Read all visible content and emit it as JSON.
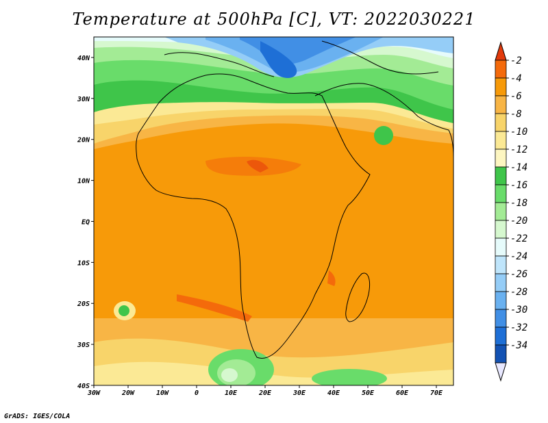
{
  "title": "Temperature at 500hPa [C], VT: 2022030221",
  "credit": "GrADS: IGES/COLA",
  "map": {
    "lon_range": [
      -30,
      75
    ],
    "lat_range": [
      -40,
      45
    ],
    "lon_ticks": [
      {
        "value": -30,
        "label": "30W"
      },
      {
        "value": -20,
        "label": "20W"
      },
      {
        "value": -10,
        "label": "10W"
      },
      {
        "value": 0,
        "label": "0"
      },
      {
        "value": 10,
        "label": "10E"
      },
      {
        "value": 20,
        "label": "20E"
      },
      {
        "value": 30,
        "label": "30E"
      },
      {
        "value": 40,
        "label": "40E"
      },
      {
        "value": 50,
        "label": "50E"
      },
      {
        "value": 60,
        "label": "60E"
      },
      {
        "value": 70,
        "label": "70E"
      }
    ],
    "lat_ticks": [
      {
        "value": 40,
        "label": "40N"
      },
      {
        "value": 30,
        "label": "30N"
      },
      {
        "value": 20,
        "label": "20N"
      },
      {
        "value": 10,
        "label": "10N"
      },
      {
        "value": 0,
        "label": "EQ"
      },
      {
        "value": -10,
        "label": "10S"
      },
      {
        "value": -20,
        "label": "20S"
      },
      {
        "value": -30,
        "label": "30S"
      },
      {
        "value": -40,
        "label": "40S"
      }
    ]
  },
  "colorbar": {
    "labels": [
      "-2",
      "-4",
      "-6",
      "-8",
      "-10",
      "-12",
      "-14",
      "-16",
      "-18",
      "-20",
      "-22",
      "-24",
      "-26",
      "-28",
      "-30",
      "-32",
      "-34"
    ],
    "colors": [
      "#e23a0c",
      "#f46a0b",
      "#f79a09",
      "#f8b545",
      "#f8d46a",
      "#fbe995",
      "#fdf6c1",
      "#3fc54a",
      "#69dc6a",
      "#a3eb95",
      "#d6f8cf",
      "#e6fbfb",
      "#bfe5fb",
      "#95cdf7",
      "#6ab1f0",
      "#418fe5",
      "#1e6fd6",
      "#1352b3",
      "#0a2a85"
    ]
  }
}
